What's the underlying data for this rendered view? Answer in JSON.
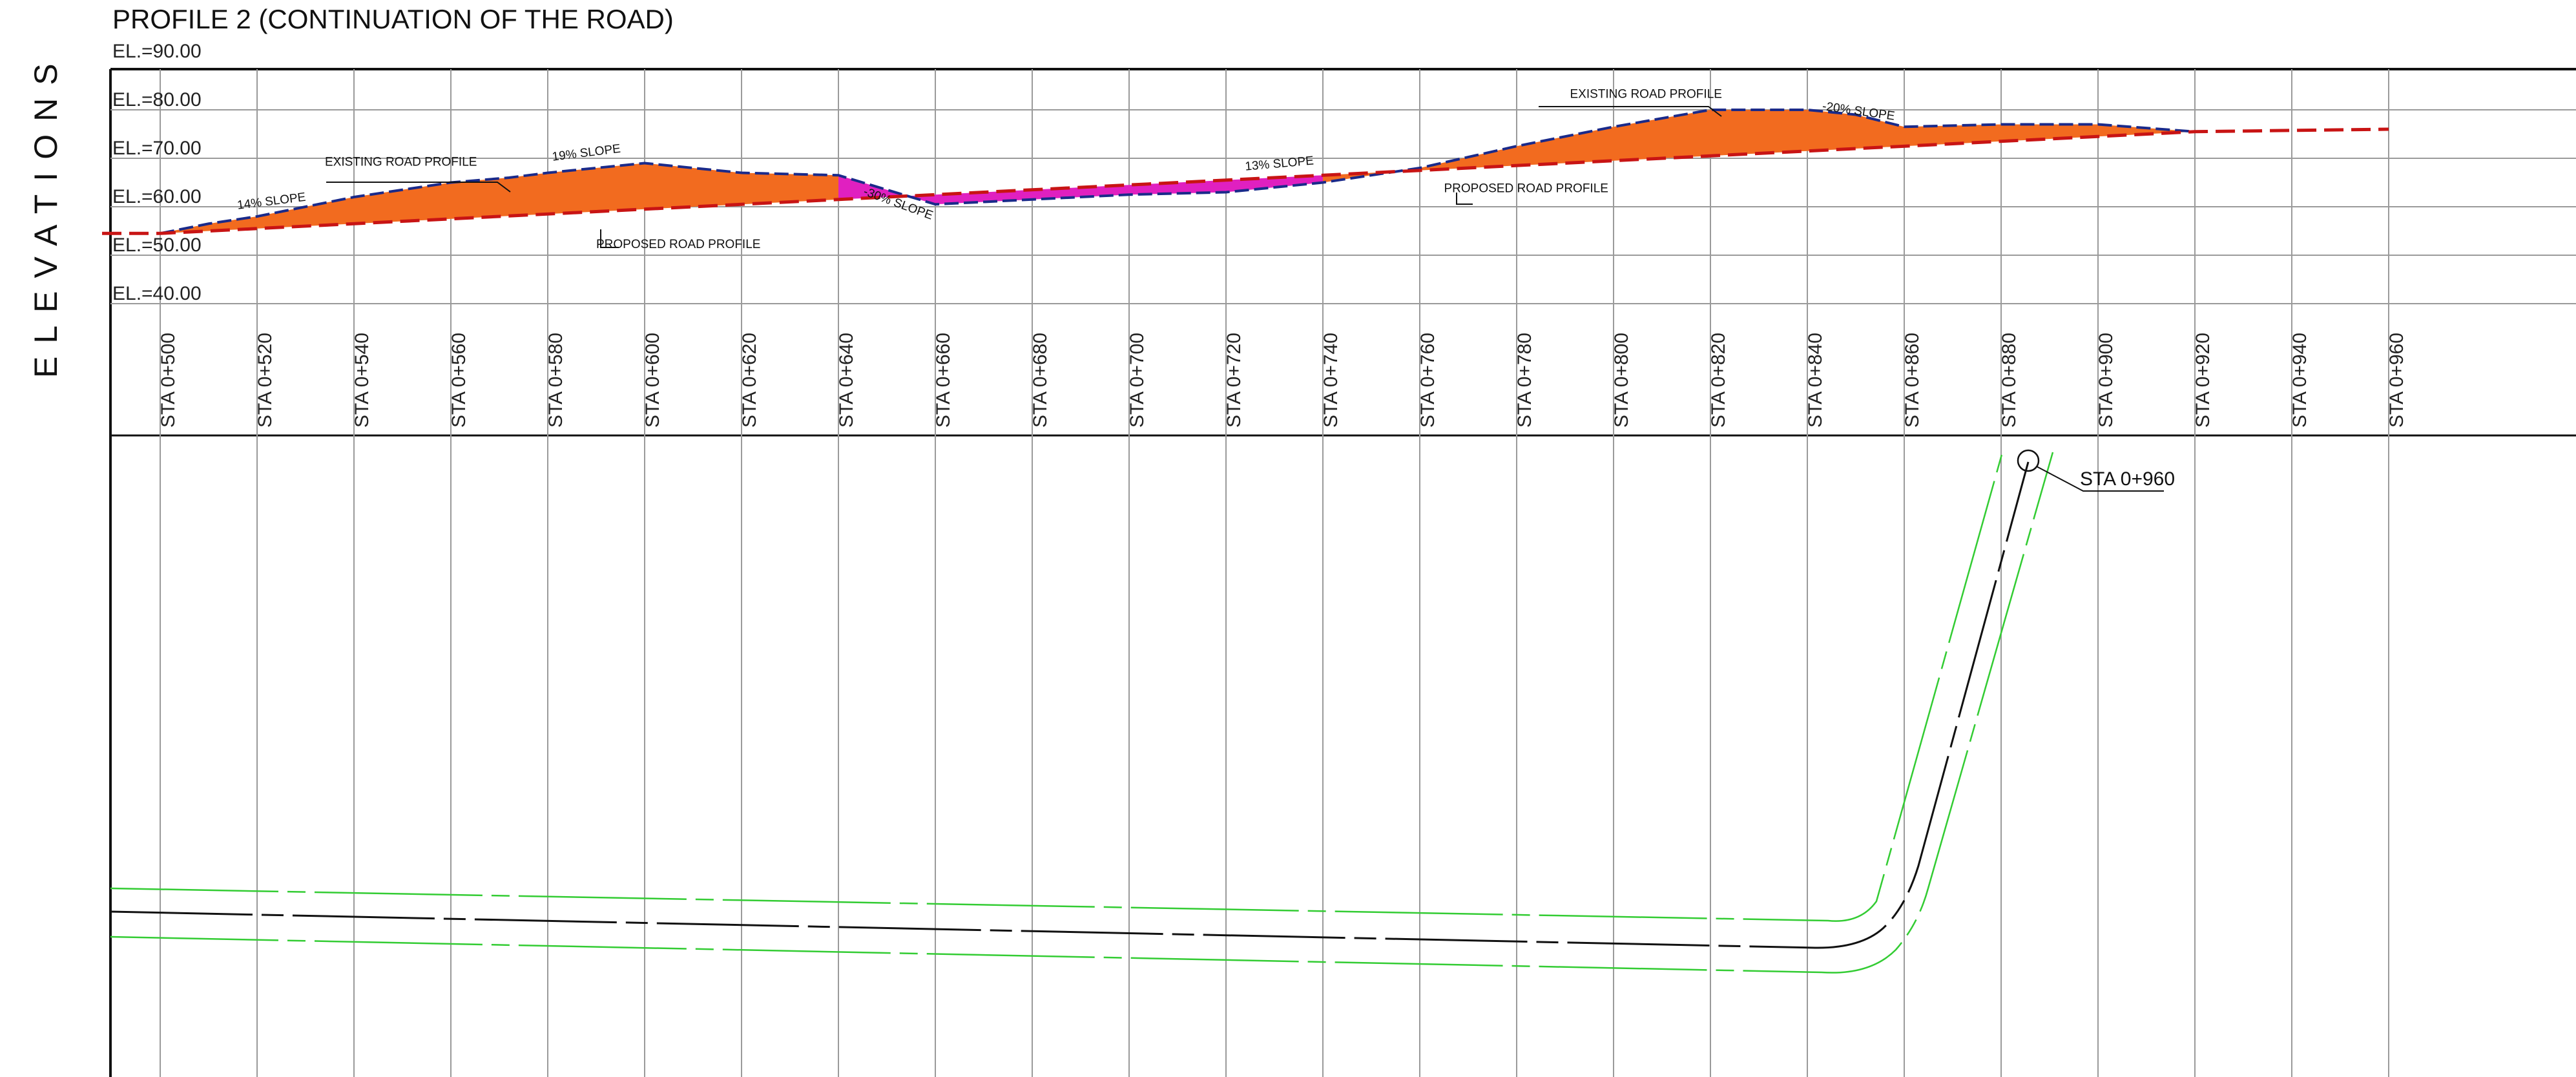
{
  "title": "PROFILE 2 (CONTINUATION OF THE ROAD)",
  "side_label": "ELEVATIONS",
  "colors": {
    "cut_fill": "#f26b1f",
    "fill_fill": "#e020c0",
    "existing_line": "#1a2a8a",
    "proposed_line": "#c81414",
    "grid": "#9a9a9a",
    "alignment": "#111111",
    "edge_line": "#33cc33"
  },
  "chart_data": {
    "type": "area",
    "x_unit": "station (m)",
    "xlim": [
      488,
      1080
    ],
    "ylim": [
      40,
      90
    ],
    "elevation_labels": [
      {
        "value": 90,
        "label": "EL.=90.00"
      },
      {
        "value": 80,
        "label": "EL.=80.00"
      },
      {
        "value": 70,
        "label": "EL.=70.00"
      },
      {
        "value": 60,
        "label": "EL.=60.00"
      },
      {
        "value": 50,
        "label": "EL.=50.00"
      },
      {
        "value": 40,
        "label": "EL.=40.00"
      }
    ],
    "stations": [
      {
        "x": 500,
        "label": "STA 0+500"
      },
      {
        "x": 520,
        "label": "STA 0+520"
      },
      {
        "x": 540,
        "label": "STA 0+540"
      },
      {
        "x": 560,
        "label": "STA 0+560"
      },
      {
        "x": 580,
        "label": "STA 0+580"
      },
      {
        "x": 600,
        "label": "STA 0+600"
      },
      {
        "x": 620,
        "label": "STA 0+620"
      },
      {
        "x": 640,
        "label": "STA 0+640"
      },
      {
        "x": 660,
        "label": "STA 0+660"
      },
      {
        "x": 680,
        "label": "STA 0+680"
      },
      {
        "x": 700,
        "label": "STA 0+700"
      },
      {
        "x": 720,
        "label": "STA 0+720"
      },
      {
        "x": 740,
        "label": "STA 0+740"
      },
      {
        "x": 760,
        "label": "STA 0+760"
      },
      {
        "x": 780,
        "label": "STA 0+780"
      },
      {
        "x": 800,
        "label": "STA 0+800"
      },
      {
        "x": 820,
        "label": "STA 0+820"
      },
      {
        "x": 840,
        "label": "STA 0+840"
      },
      {
        "x": 860,
        "label": "STA 0+860"
      },
      {
        "x": 880,
        "label": "STA 0+880"
      },
      {
        "x": 900,
        "label": "STA 0+900"
      },
      {
        "x": 920,
        "label": "STA 0+920"
      },
      {
        "x": 940,
        "label": "STA 0+940"
      },
      {
        "x": 960,
        "label": "STA 0+960"
      }
    ],
    "extra_grid_x": [
      1000,
      1040,
      1080
    ],
    "series": [
      {
        "name": "EXISTING ROAD PROFILE",
        "x": [
          500,
          510,
          520,
          540,
          560,
          572,
          580,
          600,
          620,
          640,
          660,
          680,
          700,
          720,
          740,
          760,
          780,
          800,
          820,
          840,
          850,
          860,
          880,
          900,
          920
        ],
        "y": [
          54.5,
          56.5,
          58,
          62,
          65,
          66,
          67,
          69,
          67,
          66.5,
          60.5,
          61.5,
          62.5,
          63,
          65,
          68,
          72.5,
          76.5,
          80,
          80,
          79,
          76.5,
          77,
          77,
          75.5
        ]
      },
      {
        "name": "PROPOSED ROAD PROFILE",
        "x": [
          488,
          500,
          920,
          960
        ],
        "y": [
          54.5,
          54.5,
          75.5,
          76
        ]
      }
    ],
    "annotations": [
      {
        "text": "14% SLOPE",
        "x": 516,
        "y": 59.5,
        "angle": -7
      },
      {
        "text": "EXISTING ROAD PROFILE",
        "x": 534,
        "y": 68.5,
        "angle": 0
      },
      {
        "text": "19% SLOPE",
        "x": 581,
        "y": 69.5,
        "angle": -7
      },
      {
        "text": "PROPOSED ROAD PROFILE",
        "x": 590,
        "y": 51.5,
        "angle": 0
      },
      {
        "text": "-30% SLOPE",
        "x": 645,
        "y": 62.5,
        "angle": 20
      },
      {
        "text": "13% SLOPE",
        "x": 724,
        "y": 67.5,
        "angle": -5
      },
      {
        "text": "PROPOSED ROAD PROFILE",
        "x": 765,
        "y": 63,
        "angle": 0
      },
      {
        "text": "EXISTING ROAD PROFILE",
        "x": 791,
        "y": 82.5,
        "angle": 0
      },
      {
        "text": "-20% SLOPE",
        "x": 843,
        "y": 80,
        "angle": 8
      }
    ]
  },
  "plan_view": {
    "callout": "STA 0+960"
  }
}
